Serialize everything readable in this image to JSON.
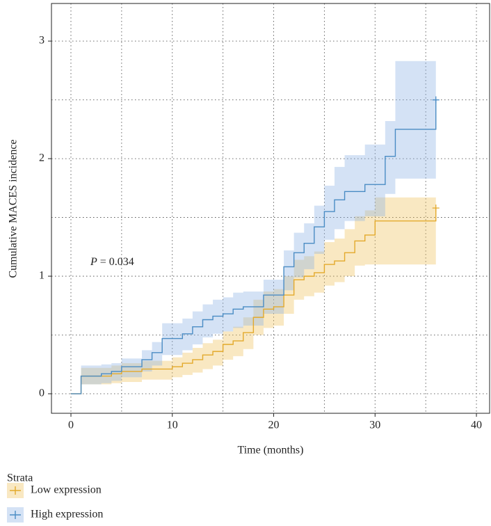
{
  "chart_data": {
    "type": "step",
    "x_label": "Time (months)",
    "y_label": "Cumulative MACES incidence",
    "annotation": "P = 0.034",
    "legend_title": "Strata",
    "xlim": [
      -1.92,
      41.3
    ],
    "ylim": [
      -0.166,
      3.32
    ],
    "xticks": [
      0,
      10,
      20,
      30,
      40
    ],
    "yticks": [
      0,
      1,
      2,
      3
    ],
    "grid": true,
    "series": [
      {
        "name": "Low expression",
        "color": "#e3a92b",
        "band_color": "#efc35e",
        "x": [
          0,
          1,
          4,
          5,
          7,
          10,
          11,
          12,
          13,
          14,
          15,
          16,
          17,
          18,
          19,
          20,
          21,
          22,
          23,
          24,
          25,
          26,
          27,
          28,
          29,
          30,
          36
        ],
        "values": [
          0,
          0.15,
          0.17,
          0.19,
          0.21,
          0.23,
          0.26,
          0.29,
          0.33,
          0.36,
          0.42,
          0.45,
          0.52,
          0.65,
          0.72,
          0.74,
          0.84,
          0.97,
          1.0,
          1.03,
          1.1,
          1.13,
          1.2,
          1.3,
          1.35,
          1.47,
          1.58
        ],
        "upper": [
          0,
          0.22,
          0.24,
          0.26,
          0.28,
          0.31,
          0.35,
          0.39,
          0.43,
          0.46,
          0.53,
          0.57,
          0.65,
          0.8,
          0.87,
          0.89,
          1.0,
          1.14,
          1.17,
          1.21,
          1.29,
          1.32,
          1.4,
          1.51,
          1.56,
          1.67,
          1.67
        ],
        "lower": [
          0,
          0.08,
          0.09,
          0.1,
          0.12,
          0.14,
          0.16,
          0.18,
          0.21,
          0.24,
          0.29,
          0.32,
          0.38,
          0.5,
          0.56,
          0.58,
          0.68,
          0.8,
          0.83,
          0.86,
          0.92,
          0.95,
          1.0,
          1.09,
          1.1,
          1.1,
          1.1
        ]
      },
      {
        "name": "High expression",
        "color": "#4a8cc4",
        "band_color": "#8fb4e4",
        "x": [
          0,
          1,
          3,
          4,
          5,
          7,
          8,
          9,
          11,
          12,
          13,
          14,
          15,
          16,
          17,
          19,
          21,
          22,
          23,
          24,
          25,
          26,
          27,
          29,
          31,
          32,
          36
        ],
        "values": [
          0,
          0.15,
          0.17,
          0.19,
          0.23,
          0.29,
          0.35,
          0.47,
          0.51,
          0.57,
          0.63,
          0.66,
          0.68,
          0.72,
          0.74,
          0.84,
          1.08,
          1.2,
          1.28,
          1.42,
          1.55,
          1.65,
          1.72,
          1.78,
          2.02,
          2.25,
          2.5
        ],
        "upper": [
          0,
          0.24,
          0.25,
          0.26,
          0.3,
          0.37,
          0.44,
          0.6,
          0.64,
          0.7,
          0.76,
          0.8,
          0.82,
          0.86,
          0.87,
          0.97,
          1.22,
          1.37,
          1.45,
          1.6,
          1.77,
          1.93,
          2.03,
          2.12,
          2.32,
          2.83,
          2.83
        ],
        "lower": [
          0,
          0.08,
          0.09,
          0.11,
          0.14,
          0.19,
          0.24,
          0.33,
          0.37,
          0.42,
          0.48,
          0.51,
          0.53,
          0.56,
          0.58,
          0.68,
          0.88,
          0.99,
          1.06,
          1.19,
          1.31,
          1.4,
          1.47,
          1.51,
          1.7,
          1.83,
          1.83
        ]
      }
    ]
  }
}
